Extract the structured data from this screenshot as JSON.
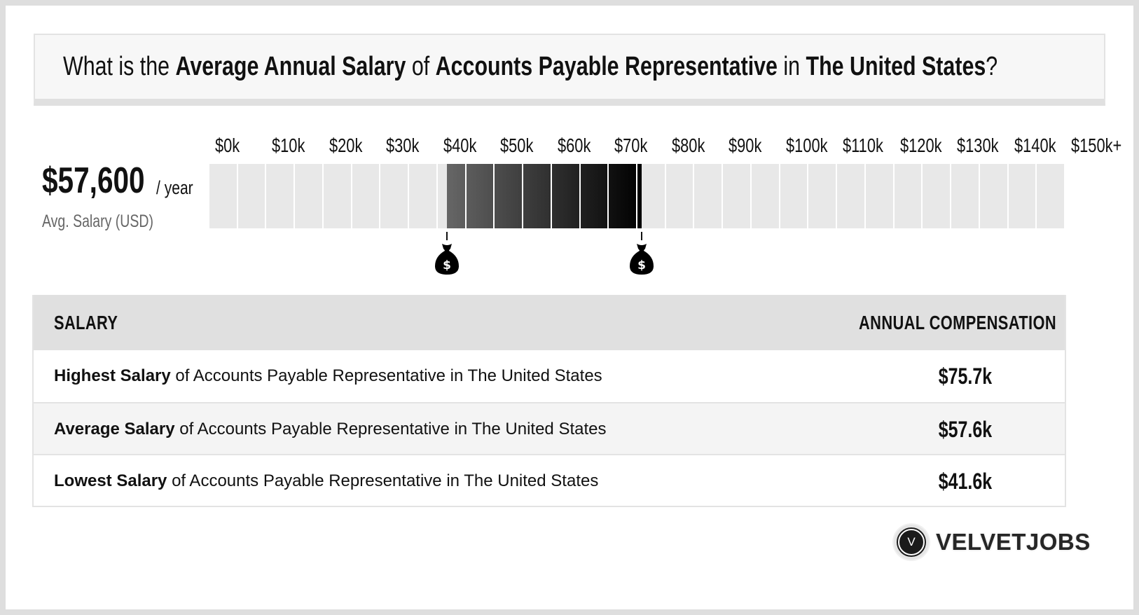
{
  "title": {
    "parts": [
      {
        "text": "What is the ",
        "bold": false
      },
      {
        "text": "Average Annual Salary",
        "bold": true
      },
      {
        "text": " of ",
        "bold": false
      },
      {
        "text": "Accounts Payable Representative",
        "bold": true
      },
      {
        "text": " in ",
        "bold": false
      },
      {
        "text": "The United States",
        "bold": true
      },
      {
        "text": "?",
        "bold": false
      }
    ]
  },
  "summary": {
    "amount": "$57,600",
    "period": "/ year",
    "label": "Avg. Salary (USD)"
  },
  "colors": {
    "bar_inactive": "#e8e8e8",
    "bar_active_start": "#666666",
    "bar_active_end": "#000000",
    "header_bg": "#e0e0e0",
    "alt_row_bg": "#f4f4f4"
  },
  "chart_data": {
    "type": "bar",
    "title": "Average Annual Salary of Accounts Payable Representative in The United States",
    "tick_labels": [
      "$0k",
      "$10k",
      "$20k",
      "$30k",
      "$40k",
      "$50k",
      "$60k",
      "$70k",
      "$80k",
      "$90k",
      "$100k",
      "$110k",
      "$120k",
      "$130k",
      "$140k",
      "$150k+"
    ],
    "xlim": [
      0,
      150000
    ],
    "segment_size": 5000,
    "segment_count": 30,
    "range": {
      "low": 41600,
      "high": 75700
    },
    "average": 57600,
    "markers": [
      {
        "name": "lowest",
        "value": 41600,
        "icon": "money-bag-icon"
      },
      {
        "name": "highest",
        "value": 75700,
        "icon": "money-bag-icon"
      }
    ],
    "xlabel": "",
    "ylabel": ""
  },
  "table": {
    "headers": [
      "SALARY",
      "ANNUAL COMPENSATION"
    ],
    "rows": [
      {
        "bold": "Highest Salary",
        "rest": " of Accounts Payable Representative in The United States",
        "value": "$75.7k"
      },
      {
        "bold": "Average Salary",
        "rest": " of Accounts Payable Representative in The United States",
        "value": "$57.6k"
      },
      {
        "bold": "Lowest Salary",
        "rest": " of Accounts Payable Representative in The United States",
        "value": "$41.6k"
      }
    ]
  },
  "brand": {
    "logo_letter": "V",
    "name": "VELVETJOBS"
  }
}
